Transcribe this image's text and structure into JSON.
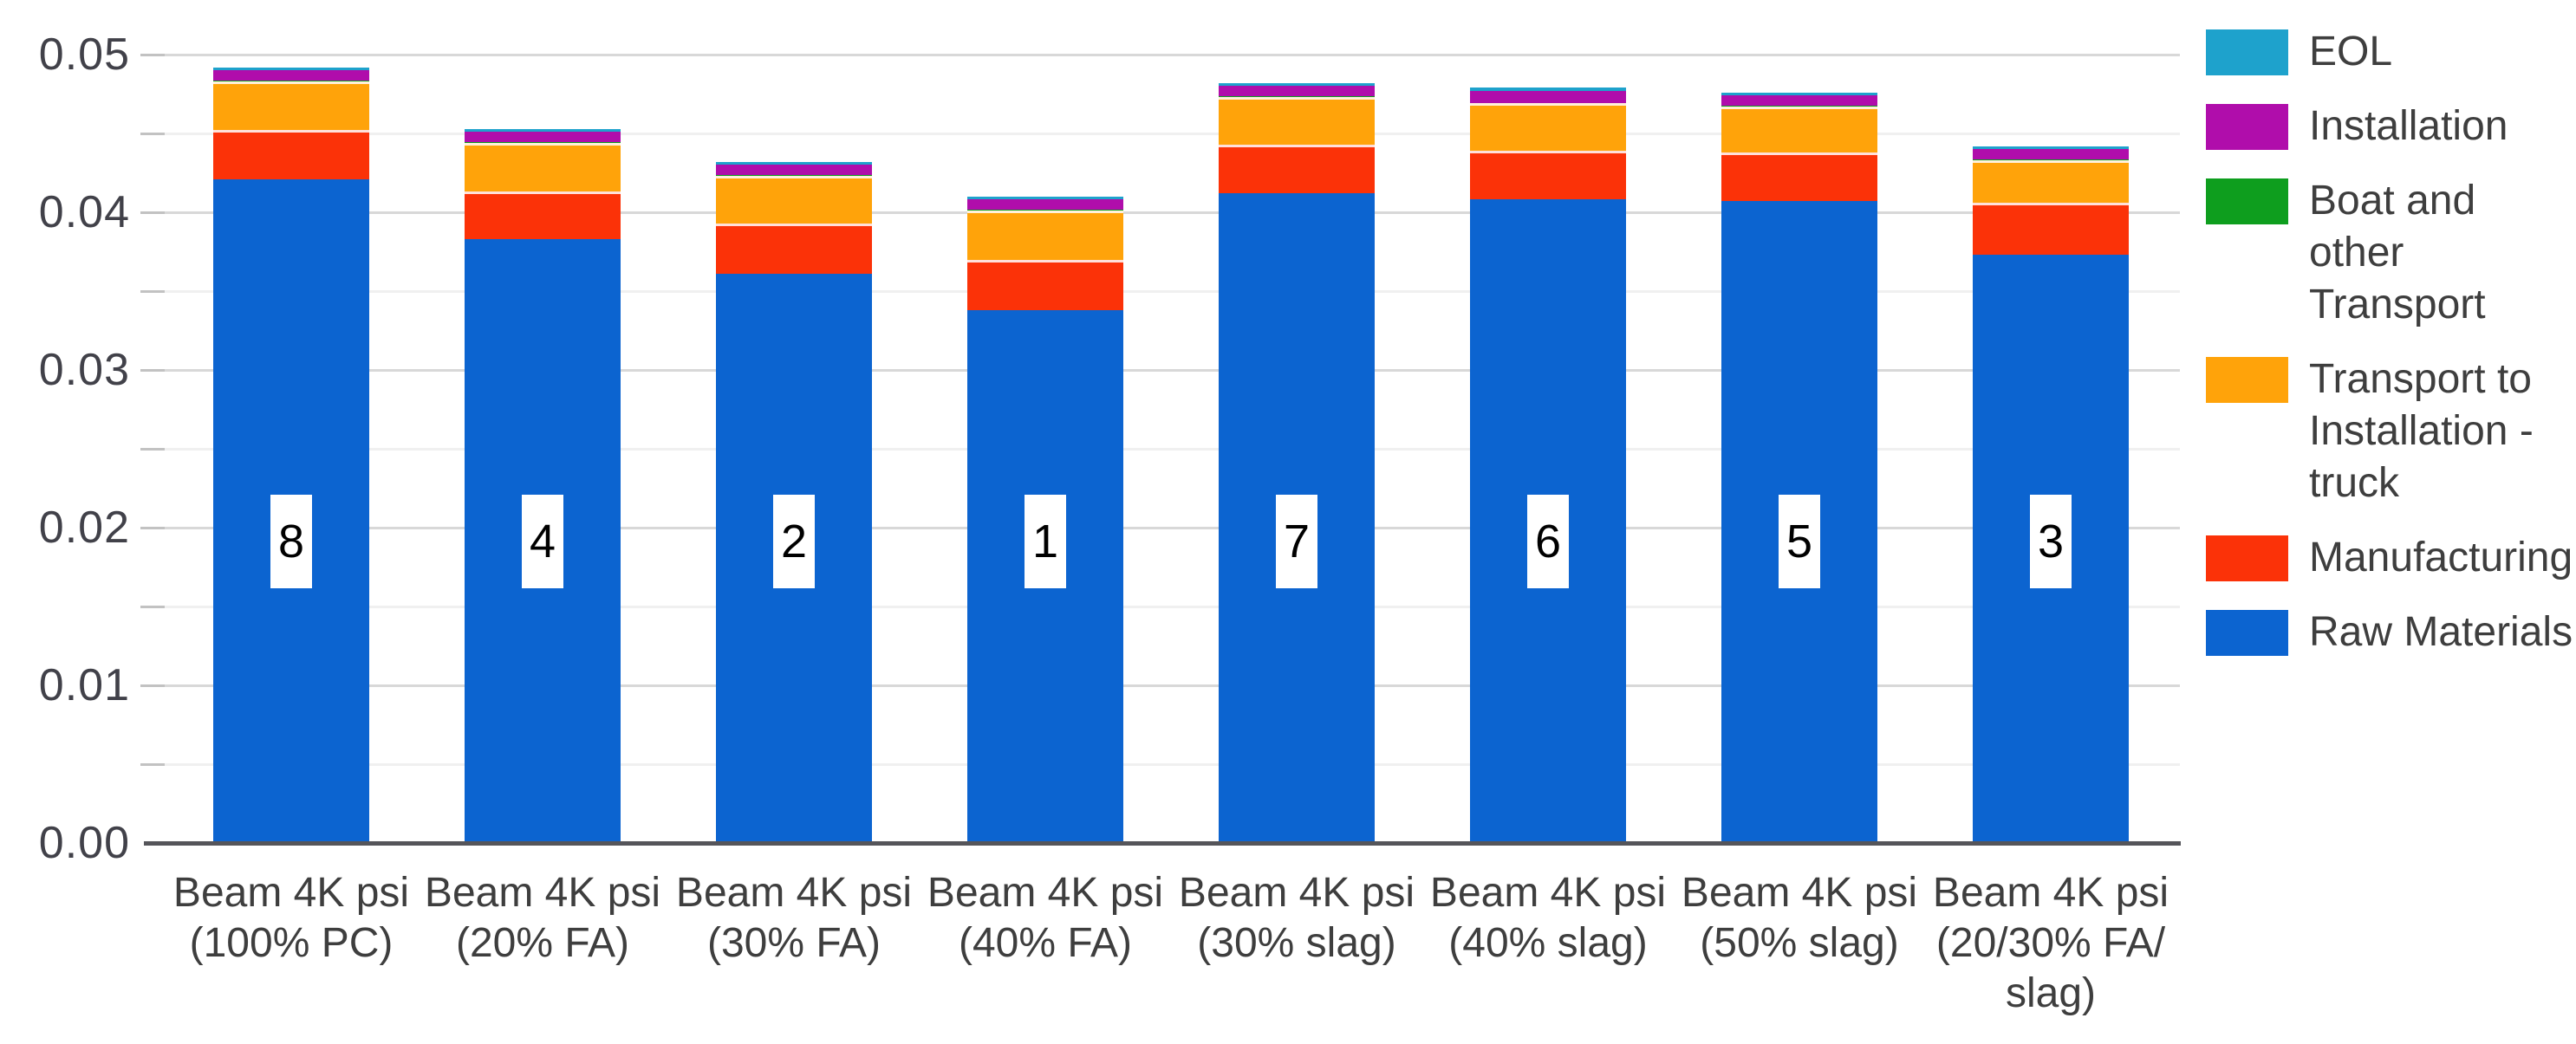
{
  "chart_data": {
    "type": "bar",
    "stacked": true,
    "title": "",
    "xlabel": "",
    "ylabel": "",
    "categories": [
      "Beam 4K psi (100% PC)",
      "Beam 4K psi (20% FA)",
      "Beam 4K psi (30% FA)",
      "Beam 4K psi (40% FA)",
      "Beam 4K psi (30% slag)",
      "Beam 4K psi (40% slag)",
      "Beam 4K psi (50% slag)",
      "Beam 4K psi (20/30% FA/ slag)"
    ],
    "category_label_lines": [
      [
        "Beam 4K psi",
        "(100% PC)"
      ],
      [
        "Beam 4K psi",
        "(20% FA)"
      ],
      [
        "Beam 4K psi",
        "(30% FA)"
      ],
      [
        "Beam 4K psi",
        "(40% FA)"
      ],
      [
        "Beam 4K psi",
        "(30% slag)"
      ],
      [
        "Beam 4K psi",
        "(40% slag)"
      ],
      [
        "Beam 4K psi",
        "(50% slag)"
      ],
      [
        "Beam 4K psi",
        "(20/30% FA/",
        "slag)"
      ]
    ],
    "rank_labels": [
      "8",
      "4",
      "2",
      "1",
      "7",
      "6",
      "5",
      "3"
    ],
    "series": [
      {
        "name": "Raw Materials",
        "color": "#0C64D0",
        "values": [
          0.0421,
          0.0383,
          0.0361,
          0.0338,
          0.0412,
          0.0408,
          0.0407,
          0.0373
        ]
      },
      {
        "name": "Manufacturing",
        "color": "#FB3208",
        "values": [
          0.0031,
          0.003,
          0.0032,
          0.0032,
          0.0031,
          0.0031,
          0.0031,
          0.0033
        ]
      },
      {
        "name": "Transport to Installation - truck",
        "color": "#FFA30A",
        "values": [
          0.0031,
          0.0031,
          0.003,
          0.0031,
          0.003,
          0.003,
          0.0029,
          0.0027
        ]
      },
      {
        "name": "Boat and other Transport",
        "color": "#0E9E1E",
        "values": [
          5e-05,
          5e-05,
          5e-05,
          5e-05,
          5e-05,
          5e-05,
          5e-05,
          5e-05
        ]
      },
      {
        "name": "Installation",
        "color": "#B00DAB",
        "values": [
          0.00065,
          0.00065,
          0.00065,
          0.00065,
          0.00065,
          0.00075,
          0.00065,
          0.00065
        ]
      },
      {
        "name": "EOL",
        "color": "#1EA2CC",
        "values": [
          0.0002,
          0.0002,
          0.0002,
          0.0002,
          0.0002,
          0.0002,
          0.0002,
          0.0002
        ]
      }
    ],
    "totals": [
      0.0492,
      0.0453,
      0.0432,
      0.0411,
      0.0482,
      0.0479,
      0.0476,
      0.0442
    ],
    "y_axis": {
      "min": 0,
      "max": 0.05,
      "major_step": 0.01,
      "minor_step": 0.005,
      "tick_labels": [
        "0.00",
        "0.01",
        "0.02",
        "0.03",
        "0.04",
        "0.05"
      ],
      "grid": true
    },
    "legend": {
      "position": "right",
      "items": [
        {
          "label": "EOL",
          "lines": [
            "EOL"
          ],
          "color": "#1EA2CC"
        },
        {
          "label": "Installation",
          "lines": [
            "Installation"
          ],
          "color": "#B00DAB"
        },
        {
          "label": "Boat and other Transport",
          "lines": [
            "Boat and other",
            "Transport"
          ],
          "color": "#0E9E1E"
        },
        {
          "label": "Transport to Installation - truck",
          "lines": [
            "Transport to",
            "Installation -",
            "truck"
          ],
          "color": "#FFA30A"
        },
        {
          "label": "Manufacturing",
          "lines": [
            "Manufacturing"
          ],
          "color": "#FB3208"
        },
        {
          "label": "Raw Materials",
          "lines": [
            "Raw Materials"
          ],
          "color": "#0C64D0"
        }
      ]
    },
    "colors": {
      "grid_major": "#D8D8D8",
      "grid_minor": "#F0F0F0",
      "axis_line": "#55555A",
      "text": "#3F3F3F",
      "background": "#FFFFFF"
    }
  }
}
